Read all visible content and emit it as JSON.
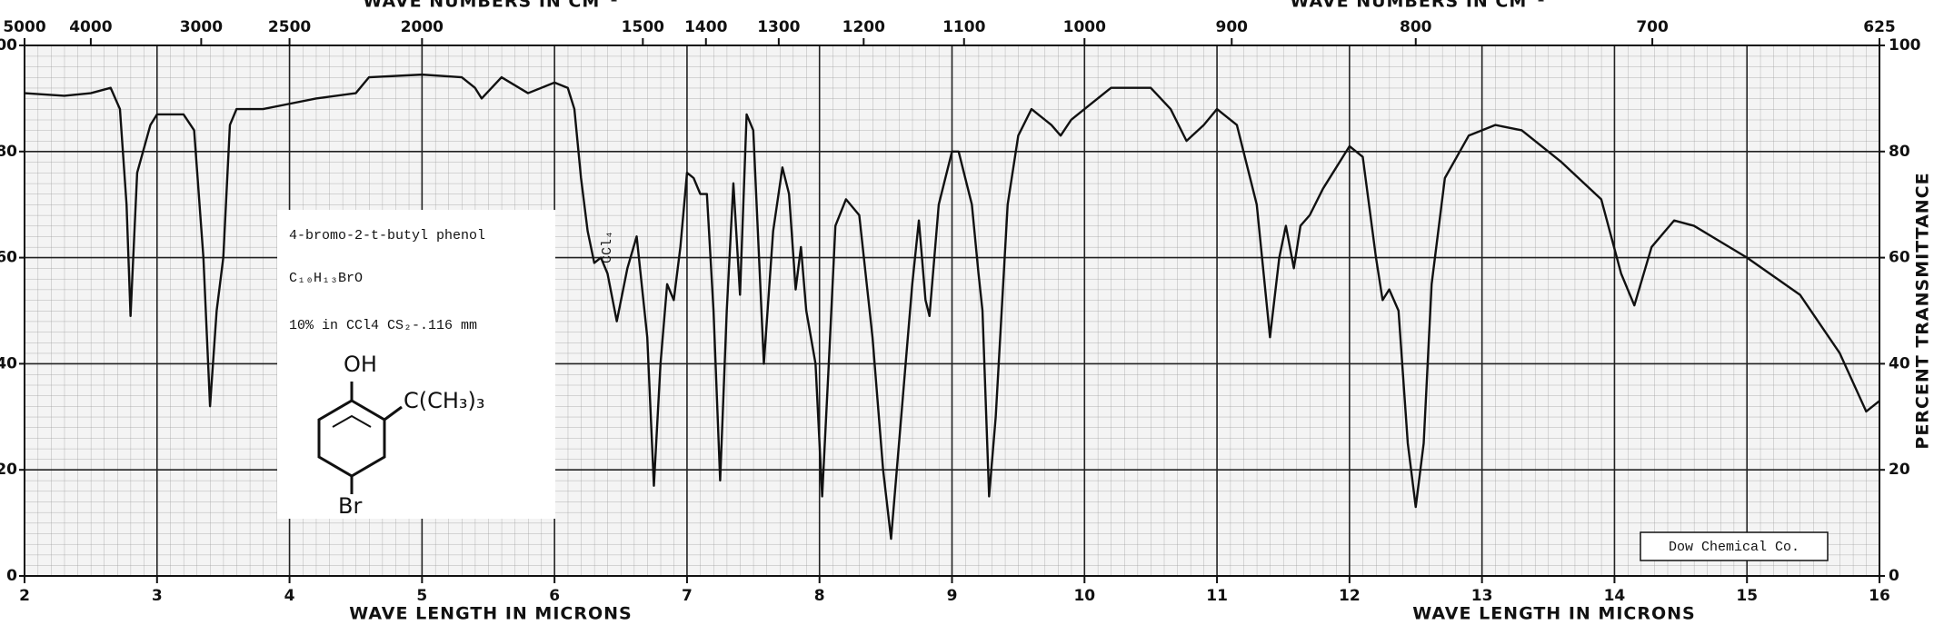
{
  "chart_data": {
    "type": "line",
    "x2label": "WAVE NUMBERS IN CM⁻¹",
    "xlabel": "WAVE LENGTH IN MICRONS",
    "ylabel": "PERCENT TRANSMITTANCE",
    "color": "#111111",
    "grid": true,
    "xlim": [
      2,
      16
    ],
    "xticks": [
      2,
      3,
      4,
      5,
      6,
      7,
      8,
      9,
      10,
      11,
      12,
      13,
      14,
      15,
      16
    ],
    "ylim": [
      0,
      100
    ],
    "yticks": [
      0,
      20,
      40,
      60,
      80,
      100
    ],
    "x2scale": "reciprocal",
    "x2ticks": [
      5000,
      4000,
      3000,
      2500,
      2000,
      1500,
      1400,
      1300,
      1200,
      1100,
      1000,
      900,
      800,
      700,
      625
    ],
    "x": [
      2.0,
      2.3,
      2.5,
      2.65,
      2.72,
      2.77,
      2.8,
      2.85,
      2.95,
      3.0,
      3.2,
      3.28,
      3.35,
      3.4,
      3.45,
      3.5,
      3.55,
      3.6,
      3.8,
      4.0,
      4.2,
      4.5,
      4.6,
      5.0,
      5.3,
      5.4,
      5.45,
      5.6,
      5.8,
      6.0,
      6.1,
      6.15,
      6.2,
      6.25,
      6.3,
      6.35,
      6.4,
      6.47,
      6.55,
      6.62,
      6.7,
      6.75,
      6.8,
      6.85,
      6.9,
      6.95,
      7.0,
      7.05,
      7.1,
      7.15,
      7.2,
      7.25,
      7.3,
      7.35,
      7.4,
      7.45,
      7.5,
      7.58,
      7.65,
      7.72,
      7.77,
      7.82,
      7.86,
      7.9,
      7.97,
      8.02,
      8.07,
      8.12,
      8.2,
      8.3,
      8.4,
      8.48,
      8.54,
      8.6,
      8.7,
      8.75,
      8.8,
      8.83,
      8.9,
      9.0,
      9.05,
      9.15,
      9.2,
      9.23,
      9.28,
      9.33,
      9.42,
      9.5,
      9.6,
      9.75,
      9.82,
      9.9,
      10.0,
      10.2,
      10.5,
      10.65,
      10.77,
      10.9,
      11.0,
      11.15,
      11.3,
      11.4,
      11.47,
      11.52,
      11.58,
      11.63,
      11.7,
      11.8,
      12.0,
      12.1,
      12.2,
      12.25,
      12.3,
      12.37,
      12.44,
      12.5,
      12.56,
      12.62,
      12.72,
      12.9,
      13.1,
      13.3,
      13.6,
      13.9,
      14.05,
      14.15,
      14.28,
      14.45,
      14.6,
      15.0,
      15.4,
      15.7,
      15.9,
      16.0
    ],
    "values": [
      91,
      90.5,
      91,
      92,
      88,
      70,
      49,
      76,
      85,
      87,
      87,
      84,
      60,
      32,
      50,
      60,
      85,
      88,
      88,
      89,
      90,
      91,
      94,
      94.5,
      94,
      92,
      90,
      94,
      91,
      93,
      92,
      88,
      75,
      65,
      59,
      60,
      57,
      48,
      58,
      64,
      45,
      17,
      40,
      55,
      52,
      62,
      76,
      75,
      72,
      72,
      50,
      18,
      50,
      74,
      53,
      87,
      84,
      40,
      65,
      77,
      72,
      54,
      62,
      50,
      40,
      15,
      40,
      66,
      71,
      68,
      45,
      20,
      7,
      25,
      55,
      67,
      52,
      49,
      70,
      80,
      80,
      70,
      57,
      50,
      15,
      30,
      70,
      83,
      88,
      85,
      83,
      86,
      88,
      92,
      92,
      88,
      82,
      85,
      88,
      85,
      70,
      45,
      60,
      66,
      58,
      66,
      68,
      73,
      81,
      79,
      60,
      52,
      54,
      50,
      25,
      13,
      25,
      55,
      75,
      83,
      85,
      84,
      78,
      71,
      57,
      51,
      62,
      67,
      66,
      60,
      53,
      42,
      31,
      33
    ],
    "annotations": {
      "name": "4-bromo-2-t-butyl phenol",
      "formula": "C₁₀H₁₃BrO",
      "conditions": "10% in CCl4  CS₂-.116 mm",
      "oh": "OH",
      "substituent": "C(CH₃)₃",
      "br": "Br",
      "solvent_band": "CCl₄",
      "credit": "Dow Chemical Co."
    }
  }
}
